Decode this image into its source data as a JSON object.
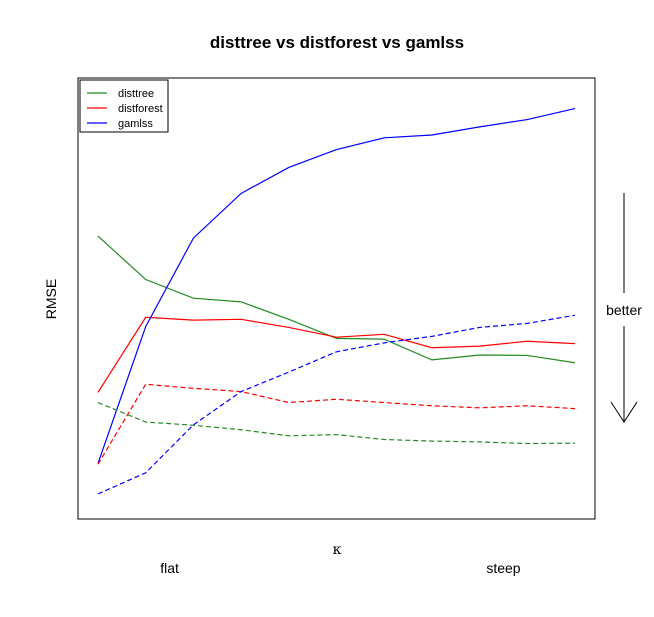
{
  "chart_data": {
    "type": "line",
    "title": "disttree vs distforest vs gamlss",
    "xlabel": "κ",
    "ylabel": "RMSE",
    "x": [
      1,
      2,
      3,
      4,
      5,
      6,
      7,
      8,
      9,
      10,
      11
    ],
    "xtick_labels": [
      {
        "x": 2.5,
        "label": "flat"
      },
      {
        "x": 9.5,
        "label": "steep"
      }
    ],
    "xlim": [
      1,
      11
    ],
    "ylim": [
      0,
      100
    ],
    "grid": false,
    "legend_position": "top-left",
    "annotation": {
      "text": "better",
      "arrow": "down"
    },
    "series": [
      {
        "name": "disttree",
        "color": "#228B22",
        "dash": "solid",
        "values": [
          65.5,
          54.8,
          50.2,
          49.3,
          45.0,
          40.3,
          40.1,
          35.0,
          36.2,
          36.1,
          34.3
        ]
      },
      {
        "name": "distforest",
        "color": "#FF0000",
        "dash": "solid",
        "values": [
          27.0,
          45.5,
          44.8,
          45.0,
          43.0,
          40.6,
          41.3,
          38.0,
          38.4,
          39.6,
          39.0
        ]
      },
      {
        "name": "gamlss",
        "color": "#0000FF",
        "dash": "solid",
        "values": [
          9.5,
          43.2,
          65.0,
          76.0,
          82.4,
          86.8,
          89.7,
          90.4,
          92.4,
          94.2,
          96.9
        ]
      },
      {
        "name": "",
        "color": "#228B22",
        "dash": "dashed",
        "values": [
          24.5,
          19.7,
          18.9,
          17.8,
          16.3,
          16.6,
          15.4,
          15.0,
          14.8,
          14.4,
          14.5
        ]
      },
      {
        "name": "",
        "color": "#FF0000",
        "dash": "dashed",
        "values": [
          9.3,
          29.0,
          28.0,
          27.2,
          24.5,
          25.3,
          24.5,
          23.7,
          23.2,
          23.7,
          23.0
        ]
      },
      {
        "name": "",
        "color": "#0000FF",
        "dash": "dashed",
        "values": [
          2.0,
          7.2,
          19.0,
          27.2,
          32.0,
          37.0,
          39.2,
          40.8,
          43.0,
          44.0,
          46.0
        ]
      }
    ]
  }
}
